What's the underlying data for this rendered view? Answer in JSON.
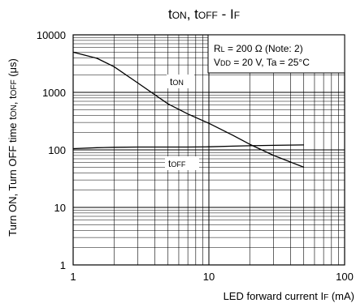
{
  "chart_data": {
    "type": "line",
    "title": {
      "t1": "t",
      "s1": "ON",
      "comma": ", t",
      "s2": "OFF",
      "rest": " - I",
      "s3": "F"
    },
    "xlabel": {
      "main": "LED forward current I",
      "sub": "F",
      "unit": " (mA)"
    },
    "ylabel": {
      "main": "Turn ON, Turn OFF time t",
      "s1": "ON",
      "mid": ", t",
      "s2": "OFF",
      "unit": " (μs)"
    },
    "x_scale": "log",
    "y_scale": "log",
    "xlim": [
      1,
      100
    ],
    "ylim": [
      1,
      10000
    ],
    "x_ticks": [
      "1",
      "10",
      "100"
    ],
    "y_ticks": [
      "1",
      "10",
      "100",
      "1000",
      "10000"
    ],
    "grid": true,
    "conditions": {
      "line1": {
        "r": "R",
        "r_sub": "L",
        "r_val": " = 200 Ω (Note: 2)"
      },
      "line2": {
        "v": "V",
        "v_sub": "DD",
        "v_val": " = 20 V, Ta = 25°C"
      }
    },
    "series": [
      {
        "name": {
          "main": "t",
          "sub": "ON"
        },
        "x": [
          1,
          1.5,
          2,
          3,
          5,
          7,
          10,
          15,
          20,
          30,
          50
        ],
        "y": [
          5000,
          3900,
          2800,
          1450,
          630,
          420,
          290,
          180,
          125,
          80,
          50
        ]
      },
      {
        "name": {
          "main": "t",
          "sub": "OFF"
        },
        "x": [
          1,
          1.5,
          2,
          3,
          5,
          7,
          10,
          15,
          20,
          30,
          50
        ],
        "y": [
          105,
          109,
          111,
          112,
          112,
          112,
          113,
          116,
          118,
          120,
          122
        ]
      }
    ]
  }
}
